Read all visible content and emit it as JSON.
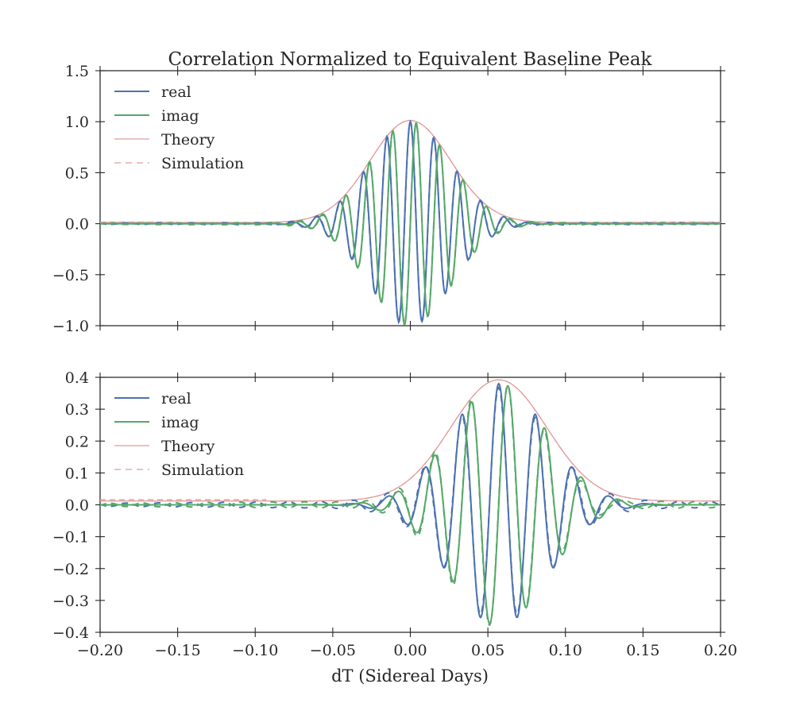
{
  "figure_title": "Correlation Normalized to Equivalent Baseline Peak",
  "xlabel": "dT (Sidereal Days)",
  "colors": {
    "real": "#4c72b0",
    "imag": "#55a868",
    "theory": "#e29b9b",
    "simulation": "#e29b9b"
  },
  "chart_data": [
    {
      "type": "line",
      "title": "Correlation Normalized to Equivalent Baseline Peak",
      "xlim": [
        -0.2,
        0.2
      ],
      "ylim": [
        -1.0,
        1.5
      ],
      "xticks": [
        "",
        "",
        "",
        "",
        "",
        "",
        "",
        "",
        ""
      ],
      "yticks": [
        "−1.0",
        "−0.5",
        "0.0",
        "0.5",
        "1.0",
        "1.5"
      ],
      "legend": [
        "real",
        "imag",
        "Theory",
        "Simulation"
      ],
      "legend_position": "top-left",
      "model": {
        "center": 0.0,
        "amplitude": 1.0,
        "envelope_sigma": 0.026,
        "fringe_frequency_per_day": 66,
        "floor": 0.012
      },
      "series": [
        {
          "name": "real",
          "style": "solid",
          "x": [
            -0.2,
            -0.1,
            -0.05,
            -0.036,
            -0.023,
            -0.011,
            0.0,
            0.011,
            0.023,
            0.036,
            0.05,
            0.1,
            0.2
          ],
          "values": [
            -0.02,
            0.0,
            -0.12,
            -0.38,
            0.6,
            -0.84,
            1.0,
            -0.84,
            0.6,
            -0.38,
            0.24,
            0.02,
            -0.02
          ]
        },
        {
          "name": "imag",
          "style": "solid",
          "x": [
            -0.2,
            -0.1,
            -0.044,
            -0.03,
            -0.017,
            -0.005,
            0.006,
            0.017,
            0.03,
            0.044,
            0.1,
            0.2
          ],
          "values": [
            -0.02,
            0.0,
            -0.18,
            -0.48,
            0.72,
            -0.95,
            0.94,
            -0.72,
            0.48,
            -0.28,
            0.02,
            0.02
          ]
        },
        {
          "name": "Theory",
          "style": "solid",
          "x": [
            -0.2,
            -0.1,
            -0.05,
            -0.025,
            0.0,
            0.025,
            0.05,
            0.1,
            0.2
          ],
          "values": [
            0.02,
            0.03,
            0.2,
            0.6,
            1.0,
            0.6,
            0.2,
            0.03,
            0.02
          ]
        },
        {
          "name": "Simulation",
          "style": "dashed",
          "x": [
            -0.2,
            -0.1,
            -0.05,
            -0.025,
            0.0,
            0.025,
            0.05,
            0.1,
            0.2
          ],
          "values": [
            0.04,
            0.03,
            0.2,
            0.6,
            1.0,
            0.6,
            0.2,
            0.03,
            0.04
          ]
        }
      ]
    },
    {
      "type": "line",
      "title": "",
      "xlim": [
        -0.2,
        0.2
      ],
      "ylim": [
        -0.4,
        0.4
      ],
      "xticks": [
        "−0.20",
        "−0.15",
        "−0.10",
        "−0.05",
        "0.00",
        "0.05",
        "0.10",
        "0.15",
        "0.20"
      ],
      "yticks": [
        "−0.4",
        "−0.3",
        "−0.2",
        "−0.1",
        "0.0",
        "0.1",
        "0.2",
        "0.3",
        "0.4"
      ],
      "legend": [
        "real",
        "imag",
        "Theory",
        "Simulation"
      ],
      "legend_position": "top-left",
      "model": {
        "center": 0.057,
        "amplitude": 0.38,
        "envelope_sigma": 0.031,
        "fringe_frequency_per_day": 42,
        "floor": 0.012
      },
      "series": [
        {
          "name": "real",
          "style": "solid",
          "x": [
            -0.2,
            -0.05,
            0.0,
            0.02,
            0.038,
            0.05,
            0.063,
            0.075,
            0.088,
            0.1,
            0.112,
            0.2
          ],
          "values": [
            0.0,
            0.01,
            0.03,
            -0.07,
            -0.26,
            0.37,
            -0.37,
            0.31,
            -0.22,
            0.16,
            -0.11,
            0.0
          ]
        },
        {
          "name": "imag",
          "style": "solid",
          "x": [
            -0.2,
            -0.05,
            0.0,
            0.03,
            0.044,
            0.057,
            0.069,
            0.081,
            0.094,
            0.106,
            0.2
          ],
          "values": [
            0.0,
            0.01,
            -0.02,
            0.2,
            -0.33,
            0.38,
            -0.35,
            0.27,
            -0.19,
            0.12,
            0.0
          ]
        },
        {
          "name": "Theory",
          "style": "solid",
          "x": [
            -0.2,
            -0.05,
            0.0,
            0.03,
            0.057,
            0.085,
            0.1,
            0.15,
            0.2
          ],
          "values": [
            0.01,
            0.01,
            0.04,
            0.23,
            0.38,
            0.25,
            0.15,
            0.03,
            0.02
          ]
        },
        {
          "name": "Simulation",
          "style": "dashed",
          "x": [
            -0.2,
            -0.05,
            0.0,
            0.03,
            0.057,
            0.085,
            0.1,
            0.15,
            0.2
          ],
          "values": [
            0.01,
            0.01,
            0.04,
            0.23,
            0.38,
            0.25,
            0.15,
            0.03,
            0.02
          ]
        }
      ]
    }
  ]
}
